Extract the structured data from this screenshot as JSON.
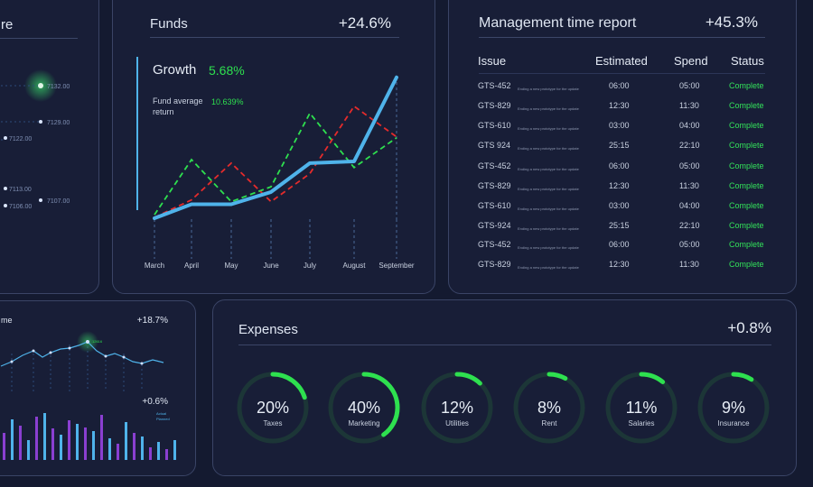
{
  "colors": {
    "background": "#141a30",
    "accent_blue": "#4fb3ea",
    "accent_green": "#2ee04f",
    "accent_red": "#e52b2b",
    "complete_green": "#33e35a",
    "gauge_track": "#1d3a3a"
  },
  "left_top": {
    "title_fragment": "re",
    "values": [
      "7132.00",
      "7129.00",
      "7122.00",
      "7113.00",
      "7107.00",
      "7106.00"
    ]
  },
  "funds": {
    "title": "Funds",
    "change": "+24.6%",
    "growth_label": "Growth",
    "growth_value": "5.68%",
    "avg_label_1": "Fund average",
    "avg_label_2": "return",
    "avg_value": "10.639%",
    "chart_data": {
      "type": "line",
      "categories": [
        "March",
        "April",
        "May",
        "June",
        "July",
        "August",
        "September"
      ],
      "series": [
        {
          "color": "#4fb3ea",
          "values": [
            1,
            17,
            17,
            31,
            64,
            66,
            162
          ]
        },
        {
          "color": "#2ee04f",
          "values": [
            5,
            68,
            20,
            37,
            121,
            59,
            93
          ]
        },
        {
          "color": "#e52b2b",
          "values": [
            2,
            22,
            64,
            20,
            52,
            129,
            94
          ]
        }
      ],
      "ylim": [
        0,
        170
      ]
    }
  },
  "mgmt": {
    "title": "Management time report",
    "change": "+45.3%",
    "headers": {
      "issue": "Issue",
      "estimated": "Estimated",
      "spend": "Spend",
      "status": "Status"
    },
    "rows": [
      {
        "issue": "GTS-452",
        "desc": "Ending a new prototype for the update",
        "estimated": "06:00",
        "spend": "05:00",
        "status": "Complete"
      },
      {
        "issue": "GTS-829",
        "desc": "Ending a new prototype for the update",
        "estimated": "12:30",
        "spend": "11:30",
        "status": "Complete"
      },
      {
        "issue": "GTS-610",
        "desc": "Ending a new prototype for the update",
        "estimated": "03:00",
        "spend": "04:00",
        "status": "Complete"
      },
      {
        "issue": "GTS 924",
        "desc": "Ending a new prototype for the update",
        "estimated": "25:15",
        "spend": "22:10",
        "status": "Complete"
      },
      {
        "issue": "GTS-452",
        "desc": "Ending a new prototype for the update",
        "estimated": "06:00",
        "spend": "05:00",
        "status": "Complete"
      },
      {
        "issue": "GTS-829",
        "desc": "Ending a new prototype for the update",
        "estimated": "12:30",
        "spend": "11:30",
        "status": "Complete"
      },
      {
        "issue": "GTS-610",
        "desc": "Ending a new prototype for the update",
        "estimated": "03:00",
        "spend": "04:00",
        "status": "Complete"
      },
      {
        "issue": "GTS-924",
        "desc": "Ending a new prototype for the update",
        "estimated": "25:15",
        "spend": "22:10",
        "status": "Complete"
      },
      {
        "issue": "GTS-452",
        "desc": "Ending a new prototype for the update",
        "estimated": "06:00",
        "spend": "05:00",
        "status": "Complete"
      },
      {
        "issue": "GTS-829",
        "desc": "Ending a new prototype for the update",
        "estimated": "12:30",
        "spend": "11:30",
        "status": "Complete"
      }
    ]
  },
  "left_bottom": {
    "title_fragment": "me",
    "change_1": "+18.7%",
    "change_2": "+0.6%",
    "peak_label": "12616",
    "legend_1": "Actual",
    "legend_2": "Planned"
  },
  "expenses": {
    "title": "Expenses",
    "change": "+0.8%",
    "gauges": [
      {
        "value": "20%",
        "label": "Taxes",
        "fraction": 0.2
      },
      {
        "value": "40%",
        "label": "Marketing",
        "fraction": 0.4
      },
      {
        "value": "12%",
        "label": "Utilities",
        "fraction": 0.12
      },
      {
        "value": "8%",
        "label": "Rent",
        "fraction": 0.08
      },
      {
        "value": "11%",
        "label": "Salaries",
        "fraction": 0.11
      },
      {
        "value": "9%",
        "label": "Insurance",
        "fraction": 0.09
      }
    ]
  }
}
